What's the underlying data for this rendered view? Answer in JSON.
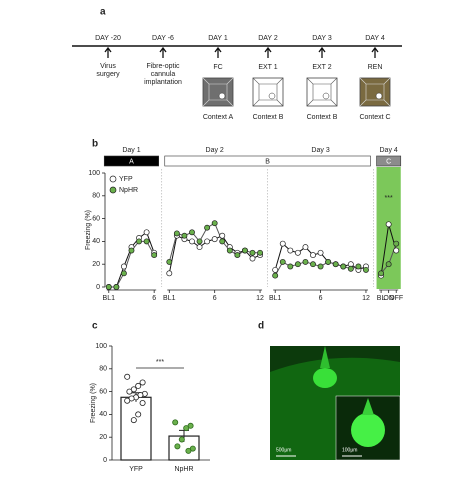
{
  "panel_labels": [
    "a",
    "b",
    "c",
    "d"
  ],
  "timeline": {
    "events": [
      {
        "day": "DAY -20",
        "lines": [
          "Virus",
          "surgery"
        ]
      },
      {
        "day": "DAY -6",
        "lines": [
          "Fibre-optic",
          "cannula",
          "implantation"
        ]
      },
      {
        "day": "DAY 1",
        "session": "FC",
        "context": "Context A"
      },
      {
        "day": "DAY 2",
        "session": "EXT 1",
        "context": "Context B"
      },
      {
        "day": "DAY 3",
        "session": "EXT 2",
        "context": "Context B"
      },
      {
        "day": "DAY 4",
        "session": "REN",
        "context": "Context C"
      }
    ]
  },
  "chart_data": [
    {
      "type": "line",
      "ylabel": "Freezing (%)",
      "ylim": [
        0,
        100
      ],
      "yticks": [
        0,
        20,
        40,
        60,
        80,
        100
      ],
      "legend": "upper left",
      "annotation": "***",
      "highlight_color": "#7cc85a",
      "day_labels": [
        "Day 1",
        "Day 2",
        "Day 3",
        "Day 4"
      ],
      "context_bars": [
        {
          "label": "A",
          "color": "#000000"
        },
        {
          "label": "B",
          "color": "#ffffff"
        },
        {
          "label": "C",
          "color": "#8c8c8c"
        }
      ],
      "categories": [
        "BL1",
        null,
        null,
        null,
        null,
        null,
        "6",
        null,
        "BL1",
        null,
        null,
        null,
        null,
        null,
        "6",
        null,
        null,
        null,
        null,
        null,
        "12",
        null,
        "BL1",
        null,
        null,
        null,
        null,
        null,
        "6",
        null,
        null,
        null,
        null,
        null,
        "12",
        null,
        "BL",
        "ON",
        "OFF"
      ],
      "series": [
        {
          "name": "YFP",
          "color": "#ffffff",
          "values": [
            0,
            0,
            18,
            35,
            43,
            48,
            30,
            null,
            12,
            45,
            42,
            40,
            35,
            40,
            42,
            45,
            35,
            30,
            32,
            25,
            28,
            null,
            15,
            38,
            32,
            30,
            35,
            28,
            30,
            22,
            20,
            18,
            20,
            15,
            18,
            null,
            10,
            55,
            32
          ]
        },
        {
          "name": "NpHR",
          "color": "#6ab04c",
          "values": [
            0,
            0,
            12,
            32,
            40,
            40,
            28,
            null,
            22,
            47,
            45,
            48,
            40,
            52,
            56,
            40,
            32,
            28,
            32,
            30,
            30,
            null,
            10,
            22,
            18,
            20,
            22,
            20,
            18,
            22,
            20,
            18,
            16,
            18,
            15,
            null,
            12,
            20,
            38
          ]
        }
      ]
    },
    {
      "type": "bar",
      "ylabel": "Freezing (%)",
      "ylim": [
        0,
        100
      ],
      "yticks": [
        0,
        20,
        40,
        60,
        80,
        100
      ],
      "annotation": "***",
      "categories": [
        "YFP",
        "NpHR"
      ],
      "values": [
        55,
        21
      ],
      "errors": [
        4,
        5
      ],
      "colors": [
        "#ffffff",
        "#6ab04c"
      ],
      "points": [
        [
          73,
          68,
          65,
          62,
          60,
          58,
          57,
          55,
          54,
          52,
          50,
          40,
          35
        ],
        [
          33,
          30,
          28,
          18,
          12,
          10,
          8
        ]
      ]
    }
  ],
  "panel_d": {
    "scale_bars": [
      "500μm",
      "100μm"
    ]
  }
}
